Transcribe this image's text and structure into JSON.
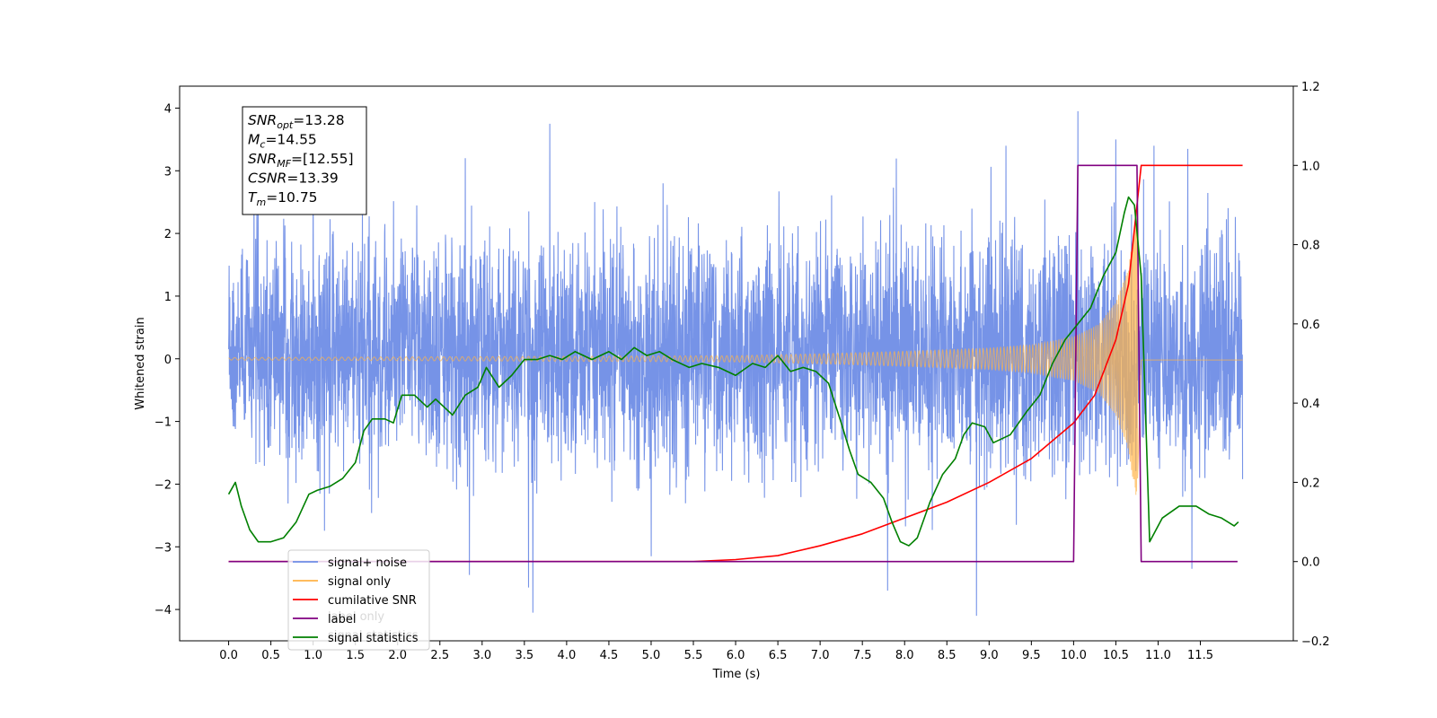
{
  "chart_data": {
    "type": "line",
    "xlabel": "Time (s)",
    "ylabel_left": "Whitened strain",
    "ylabel_right": "",
    "xlim": [
      -0.58,
      12.6
    ],
    "ylim_left": [
      -4.5,
      4.35
    ],
    "ylim_right": [
      -0.2,
      1.2
    ],
    "x_ticks": [
      "0.0",
      "0.5",
      "1.0",
      "1.5",
      "2.0",
      "2.5",
      "3.0",
      "3.5",
      "4.0",
      "4.5",
      "5.0",
      "5.5",
      "6.0",
      "6.5",
      "7.0",
      "7.5",
      "8.0",
      "8.5",
      "9.0",
      "9.5",
      "10.0",
      "10.5",
      "11.0",
      "11.5"
    ],
    "y_ticks_left": [
      "4",
      "3",
      "2",
      "1",
      "0",
      "−1",
      "−2",
      "−3",
      "−4"
    ],
    "y_ticks_right": [
      "1.2",
      "1.0",
      "0.8",
      "0.6",
      "0.4",
      "0.2",
      "0.0",
      "−0.2"
    ],
    "grid": false,
    "legend_position": "lower-left",
    "legend": [
      {
        "name": "signal+ noise",
        "color": "#6f8de6"
      },
      {
        "name": "signal only",
        "color": "#ffb347"
      },
      {
        "name": "cumilative SNR",
        "color": "#ff0000"
      },
      {
        "name": "label",
        "color": "#800080"
      },
      {
        "name": "signal statistics",
        "color": "#008000"
      }
    ],
    "legend_ghost_text": [
      "label only",
      "signal statistics"
    ],
    "annotation": {
      "lines": [
        {
          "sym": "SNR",
          "sub": "opt",
          "value": "=13.28"
        },
        {
          "sym": "M",
          "sub": "c",
          "value": "=14.55"
        },
        {
          "sym": "SNR",
          "sub": "MF",
          "value": "=[12.55]"
        },
        {
          "sym": "CSNR",
          "sub": "",
          "value": "=13.39"
        },
        {
          "sym": "T",
          "sub": "m",
          "value": "=10.75"
        }
      ]
    },
    "series": [
      {
        "name": "signal+ noise",
        "axis": "left",
        "color": "#6f8de6",
        "x_range": [
          0.0,
          12.0
        ],
        "typical_envelope": [
          -2.3,
          2.5
        ],
        "peaks": [
          {
            "x": 0.35,
            "y": 2.9
          },
          {
            "x": 1.0,
            "y": 3.3
          },
          {
            "x": 2.8,
            "y": 3.2
          },
          {
            "x": 3.8,
            "y": 3.75
          },
          {
            "x": 9.2,
            "y": 3.4
          },
          {
            "x": 10.05,
            "y": 3.95
          },
          {
            "x": 10.5,
            "y": 3.5
          },
          {
            "x": 10.95,
            "y": 3.4
          },
          {
            "x": 11.35,
            "y": 3.35
          }
        ],
        "troughs": [
          {
            "x": 2.85,
            "y": -3.45
          },
          {
            "x": 3.55,
            "y": -3.65
          },
          {
            "x": 3.6,
            "y": -4.05
          },
          {
            "x": 5.0,
            "y": -3.15
          },
          {
            "x": 7.8,
            "y": -3.7
          },
          {
            "x": 8.85,
            "y": -4.1
          },
          {
            "x": 11.4,
            "y": -3.35
          }
        ]
      },
      {
        "name": "signal only",
        "axis": "left",
        "color": "#ffb347",
        "x_range": [
          0.0,
          12.0
        ],
        "amplitude_envelope": {
          "x": [
            0.0,
            6.0,
            7.0,
            8.0,
            9.0,
            9.5,
            10.0,
            10.3,
            10.5,
            10.65,
            10.72,
            10.75,
            10.8,
            12.0
          ],
          "y": [
            0.02,
            0.05,
            0.08,
            0.12,
            0.17,
            0.22,
            0.35,
            0.55,
            0.9,
            1.45,
            2.1,
            2.25,
            0.02,
            0.02
          ]
        }
      },
      {
        "name": "cumilative SNR",
        "axis": "right",
        "color": "#ff0000",
        "x": [
          0.0,
          5.5,
          6.0,
          6.5,
          7.0,
          7.5,
          8.0,
          8.5,
          9.0,
          9.5,
          10.0,
          10.25,
          10.5,
          10.65,
          10.75,
          10.8,
          12.0
        ],
        "y": [
          0.0,
          0.0,
          0.005,
          0.015,
          0.04,
          0.07,
          0.11,
          0.15,
          0.2,
          0.26,
          0.35,
          0.42,
          0.56,
          0.7,
          0.9,
          1.0,
          1.0
        ]
      },
      {
        "name": "label",
        "axis": "right",
        "color": "#800080",
        "x": [
          0.0,
          10.0,
          10.05,
          10.72,
          10.75,
          10.8,
          11.94
        ],
        "y": [
          0.0,
          0.0,
          1.0,
          1.0,
          1.0,
          0.0,
          0.0
        ]
      },
      {
        "name": "signal statistics",
        "axis": "right",
        "color": "#008000",
        "x": [
          0.0,
          0.08,
          0.15,
          0.25,
          0.35,
          0.5,
          0.65,
          0.8,
          0.95,
          1.05,
          1.2,
          1.35,
          1.5,
          1.6,
          1.7,
          1.85,
          1.95,
          2.05,
          2.2,
          2.35,
          2.45,
          2.55,
          2.65,
          2.8,
          2.95,
          3.05,
          3.2,
          3.35,
          3.5,
          3.65,
          3.8,
          3.95,
          4.1,
          4.3,
          4.5,
          4.65,
          4.8,
          4.95,
          5.1,
          5.25,
          5.45,
          5.6,
          5.8,
          6.0,
          6.2,
          6.35,
          6.5,
          6.65,
          6.8,
          6.95,
          7.1,
          7.25,
          7.35,
          7.45,
          7.6,
          7.75,
          7.85,
          7.95,
          8.05,
          8.15,
          8.3,
          8.45,
          8.6,
          8.7,
          8.8,
          8.95,
          9.05,
          9.25,
          9.45,
          9.6,
          9.75,
          9.9,
          10.05,
          10.2,
          10.35,
          10.5,
          10.6,
          10.65,
          10.72,
          10.8,
          10.9,
          11.05,
          11.25,
          11.45,
          11.6,
          11.75,
          11.9,
          11.95
        ],
        "y": [
          0.17,
          0.2,
          0.14,
          0.08,
          0.05,
          0.05,
          0.06,
          0.1,
          0.17,
          0.18,
          0.19,
          0.21,
          0.25,
          0.33,
          0.36,
          0.36,
          0.35,
          0.42,
          0.42,
          0.39,
          0.41,
          0.39,
          0.37,
          0.42,
          0.44,
          0.49,
          0.44,
          0.47,
          0.51,
          0.51,
          0.52,
          0.51,
          0.53,
          0.51,
          0.53,
          0.51,
          0.54,
          0.52,
          0.53,
          0.51,
          0.49,
          0.5,
          0.49,
          0.47,
          0.5,
          0.49,
          0.52,
          0.48,
          0.49,
          0.48,
          0.45,
          0.35,
          0.28,
          0.22,
          0.2,
          0.16,
          0.1,
          0.05,
          0.04,
          0.06,
          0.15,
          0.22,
          0.26,
          0.32,
          0.35,
          0.34,
          0.3,
          0.32,
          0.38,
          0.42,
          0.5,
          0.56,
          0.6,
          0.64,
          0.72,
          0.78,
          0.88,
          0.92,
          0.9,
          0.72,
          0.05,
          0.11,
          0.14,
          0.14,
          0.12,
          0.11,
          0.09,
          0.1
        ]
      }
    ]
  }
}
